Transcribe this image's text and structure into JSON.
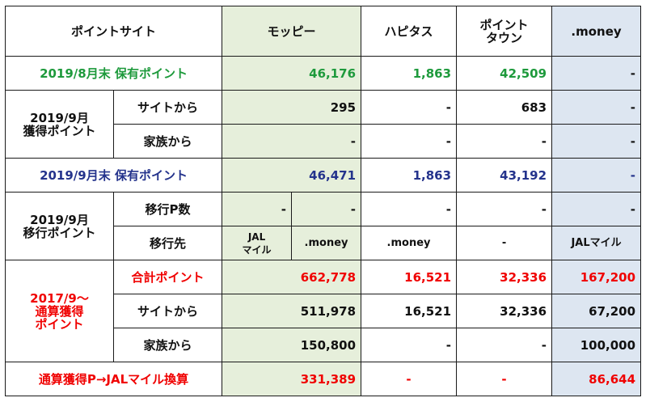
{
  "header": {
    "site": "ポイントサイト",
    "moppy": "モッピー",
    "hapitas": "ハピタス",
    "pointtown_1": "ポイント",
    "pointtown_2": "タウン",
    "money": ".money"
  },
  "row_aug": {
    "label": "2019/8月末 保有ポイント",
    "moppy": "46,176",
    "hapitas": "1,863",
    "pointtown": "42,509",
    "money": "-"
  },
  "row_sep_earned": {
    "group_1": "2019/9月",
    "group_2": "獲得ポイント",
    "site_label": "サイトから",
    "site": {
      "moppy": "295",
      "hapitas": "-",
      "pointtown": "683",
      "money": "-"
    },
    "family_label": "家族から",
    "family": {
      "moppy": "-",
      "hapitas": "-",
      "pointtown": "-",
      "money": "-"
    }
  },
  "row_sep_held": {
    "label": "2019/9月末 保有ポイント",
    "moppy": "46,471",
    "hapitas": "1,863",
    "pointtown": "43,192",
    "money": "-"
  },
  "row_transfer": {
    "group_1": "2019/9月",
    "group_2": "移行ポイント",
    "count_label": "移行P数",
    "count": {
      "moppy_a": "-",
      "moppy_b": "-",
      "hapitas": "-",
      "pointtown": "-",
      "money": "-"
    },
    "dest_label": "移行先",
    "dest": {
      "moppy_a_1": "JAL",
      "moppy_a_2": "マイル",
      "moppy_b": ".money",
      "hapitas": ".money",
      "pointtown": "-",
      "money": "JALマイル"
    }
  },
  "row_total": {
    "group_1": "2017/9～",
    "group_2": "通算獲得",
    "group_3": "ポイント",
    "sum_label": "合計ポイント",
    "sum": {
      "moppy": "662,778",
      "hapitas": "16,521",
      "pointtown": "32,336",
      "money": "167,200"
    },
    "site_label": "サイトから",
    "site": {
      "moppy": "511,978",
      "hapitas": "16,521",
      "pointtown": "32,336",
      "money": "67,200"
    },
    "family_label": "家族から",
    "family": {
      "moppy": "150,800",
      "hapitas": "-",
      "pointtown": "-",
      "money": "100,000"
    }
  },
  "row_jal": {
    "label": "通算獲得P→JALマイル換算",
    "moppy": "331,389",
    "hapitas": "-",
    "pointtown": "-",
    "money": "86,644"
  },
  "colors": {
    "green_text": "#1e9a3c",
    "navy_text": "#24338c",
    "red_text": "#f00000",
    "moppy_bg": "#e6efdb",
    "money_bg": "#dde6f1"
  }
}
